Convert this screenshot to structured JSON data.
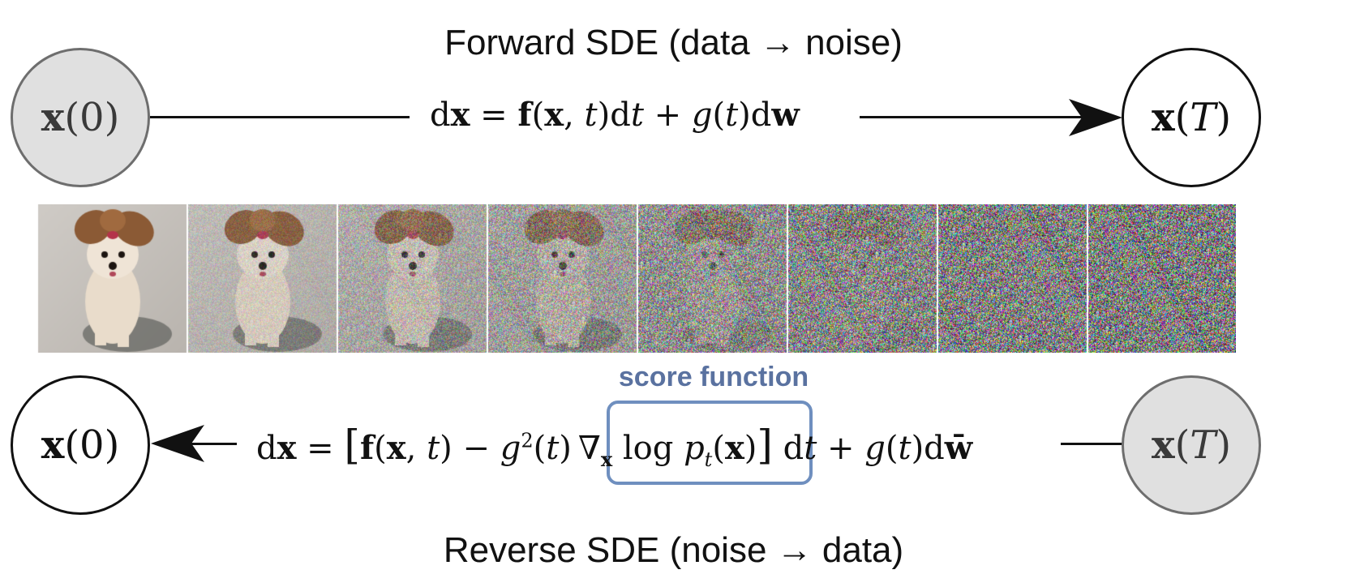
{
  "forward": {
    "title": "Forward SDE (data → noise)",
    "start_node": "x(0)",
    "end_node": "x(T)",
    "equation": "dx = f(x, t)dt + g(t)dw"
  },
  "reverse": {
    "title": "Reverse SDE (noise → data)",
    "start_node": "x(T)",
    "end_node": "x(0)",
    "equation": "dx = [f(x, t) − g²(t)∇ₓ log pₜ(x)] dt + g(t)dw̄"
  },
  "score": {
    "label": "score function",
    "term": "∇ₓ log pₜ(x)"
  },
  "image_strip": {
    "description_frames": 8,
    "noise_levels": [
      0.0,
      0.2,
      0.4,
      0.55,
      0.75,
      0.88,
      0.96,
      1.0
    ]
  },
  "colors": {
    "highlight": "#6f8fbf",
    "score_label": "#5a72a0",
    "filled_node": "#e0e0e0",
    "line": "#111111"
  }
}
